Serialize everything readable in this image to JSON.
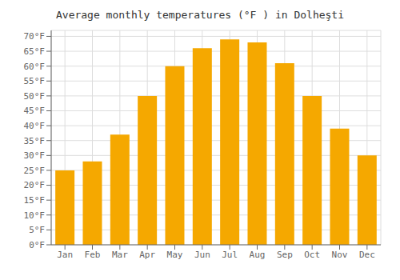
{
  "chart_data": {
    "type": "bar",
    "title": "Average monthly temperatures (°F ) in Dolheşti",
    "categories": [
      "Jan",
      "Feb",
      "Mar",
      "Apr",
      "May",
      "Jun",
      "Jul",
      "Aug",
      "Sep",
      "Oct",
      "Nov",
      "Dec"
    ],
    "values": [
      25,
      28,
      37,
      50,
      60,
      66,
      69,
      68,
      61,
      50,
      39,
      30
    ],
    "color": "#F5A800",
    "ylim": [
      0,
      72
    ],
    "yticks": [
      {
        "value": 0,
        "label": "0°F"
      },
      {
        "value": 5,
        "label": "5°F"
      },
      {
        "value": 10,
        "label": "10°F"
      },
      {
        "value": 15,
        "label": "15°F"
      },
      {
        "value": 20,
        "label": "20°F"
      },
      {
        "value": 25,
        "label": "25°F"
      },
      {
        "value": 30,
        "label": "30°F"
      },
      {
        "value": 35,
        "label": "35°F"
      },
      {
        "value": 40,
        "label": "40°F"
      },
      {
        "value": 45,
        "label": "45°F"
      },
      {
        "value": 50,
        "label": "50°F"
      },
      {
        "value": 55,
        "label": "55°F"
      },
      {
        "value": 60,
        "label": "60°F"
      },
      {
        "value": 65,
        "label": "65°F"
      },
      {
        "value": 70,
        "label": "70°F"
      }
    ],
    "grid": true
  }
}
